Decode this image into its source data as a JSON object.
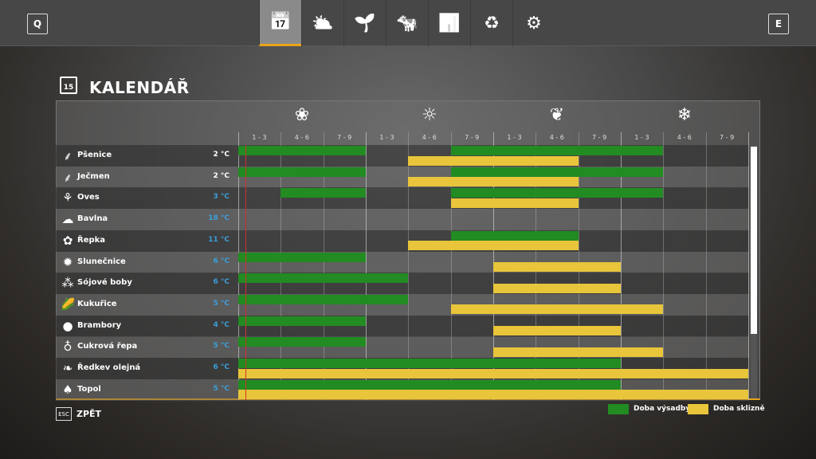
{
  "topbar": {
    "left_key": "Q",
    "right_key": "E",
    "tabs": [
      {
        "icon": "calendar-icon",
        "glyph": "📅",
        "active": true
      },
      {
        "icon": "weather-icon",
        "glyph": "⛅"
      },
      {
        "icon": "sprout-icon",
        "glyph": "🌱"
      },
      {
        "icon": "cow-icon",
        "glyph": "🐄"
      },
      {
        "icon": "stats-chart-icon",
        "glyph": "📊"
      },
      {
        "icon": "cycle-icon",
        "glyph": "♻"
      },
      {
        "icon": "gears-icon",
        "glyph": "⚙"
      }
    ]
  },
  "page": {
    "title": "KALENDÁŘ",
    "calendar_day": "15"
  },
  "seasons": [
    {
      "icon": "spring-flower-icon",
      "glyph": "❀"
    },
    {
      "icon": "summer-sun-icon",
      "glyph": "☼"
    },
    {
      "icon": "autumn-leaf-icon",
      "glyph": "❦"
    },
    {
      "icon": "winter-snowflake-icon",
      "glyph": "❄"
    }
  ],
  "periods": [
    "1 - 3",
    "4 - 6",
    "7 - 9",
    "1 - 3",
    "4 - 6",
    "7 - 9",
    "1 - 3",
    "4 - 6",
    "7 - 9",
    "1 - 3",
    "4 - 6",
    "7 - 9"
  ],
  "colors": {
    "planting": "#228b22",
    "harvest": "#e8c53a",
    "temp_normal": "#ffffff",
    "temp_blue": "#3a9fd8",
    "accent": "#e8a317",
    "current_marker": "#d0302a"
  },
  "crops": [
    {
      "name": "Pšenice",
      "temp": "2 °C",
      "temp_color": "normal",
      "icon": "wheat-icon",
      "glyph": "⸙",
      "plant": [
        [
          0,
          3
        ],
        [
          5,
          10
        ]
      ],
      "harvest": [
        [
          4,
          8
        ]
      ]
    },
    {
      "name": "Ječmen",
      "temp": "2 °C",
      "temp_color": "normal",
      "icon": "barley-icon",
      "glyph": "⸙",
      "plant": [
        [
          0,
          3
        ],
        [
          5,
          10
        ]
      ],
      "harvest": [
        [
          4,
          8
        ]
      ]
    },
    {
      "name": "Oves",
      "temp": "3 °C",
      "temp_color": "blue",
      "icon": "oat-icon",
      "glyph": "⚘",
      "plant": [
        [
          1,
          3
        ],
        [
          5,
          10
        ]
      ],
      "harvest": [
        [
          5,
          8
        ]
      ]
    },
    {
      "name": "Bavlna",
      "temp": "18 °C",
      "temp_color": "blue",
      "icon": "cotton-icon",
      "glyph": "☁",
      "plant": [],
      "harvest": []
    },
    {
      "name": "Řepka",
      "temp": "11 °C",
      "temp_color": "blue",
      "icon": "canola-icon",
      "glyph": "✿",
      "plant": [
        [
          5,
          8
        ]
      ],
      "harvest": [
        [
          4,
          8
        ]
      ]
    },
    {
      "name": "Slunečnice",
      "temp": "6 °C",
      "temp_color": "blue",
      "icon": "sunflower-icon",
      "glyph": "✹",
      "plant": [
        [
          0,
          3
        ]
      ],
      "harvest": [
        [
          6,
          9
        ]
      ]
    },
    {
      "name": "Sójové boby",
      "temp": "6 °C",
      "temp_color": "blue",
      "icon": "soybean-icon",
      "glyph": "⁂",
      "plant": [
        [
          0,
          4
        ]
      ],
      "harvest": [
        [
          6,
          9
        ]
      ]
    },
    {
      "name": "Kukuřice",
      "temp": "5 °C",
      "temp_color": "blue",
      "icon": "corn-icon",
      "glyph": "🌽",
      "plant": [
        [
          0,
          4
        ]
      ],
      "harvest": [
        [
          5,
          10
        ]
      ]
    },
    {
      "name": "Brambory",
      "temp": "4 °C",
      "temp_color": "blue",
      "icon": "potato-icon",
      "glyph": "●",
      "plant": [
        [
          0,
          3
        ]
      ],
      "harvest": [
        [
          6,
          9
        ]
      ]
    },
    {
      "name": "Cukrová řepa",
      "temp": "5 °C",
      "temp_color": "blue",
      "icon": "sugarbeet-icon",
      "glyph": "♁",
      "plant": [
        [
          0,
          3
        ]
      ],
      "harvest": [
        [
          6,
          10
        ]
      ]
    },
    {
      "name": "Ředkev olejná",
      "temp": "6 °C",
      "temp_color": "blue",
      "icon": "oilradish-icon",
      "glyph": "❧",
      "plant": [
        [
          0,
          9
        ]
      ],
      "harvest": [
        [
          0,
          12
        ]
      ]
    },
    {
      "name": "Topol",
      "temp": "5 °C",
      "temp_color": "blue",
      "icon": "poplar-icon",
      "glyph": "♠",
      "plant": [
        [
          0,
          9
        ]
      ],
      "harvest": [
        [
          0,
          12
        ]
      ]
    }
  ],
  "footer": {
    "esc_key": "ESC",
    "back_label": "ZPĚT"
  },
  "legend": {
    "planting_label": "Doba výsadby",
    "harvest_label": "Doba sklizně"
  }
}
